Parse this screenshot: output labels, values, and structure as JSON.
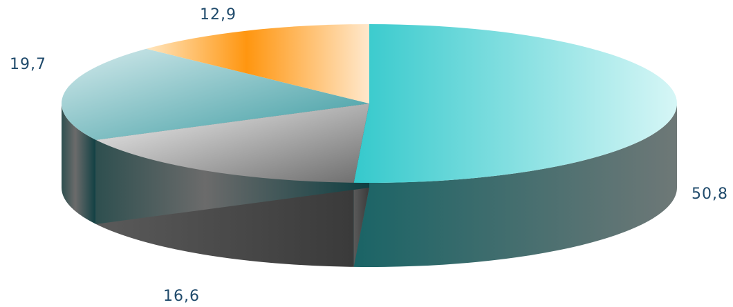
{
  "chart_data": {
    "type": "pie",
    "style": "3d",
    "slices": [
      {
        "label": "50,8",
        "value": 50.8,
        "color": "#3ecfcf"
      },
      {
        "label": "16,6",
        "value": 16.6,
        "color": "#a9a9a9"
      },
      {
        "label": "19,7",
        "value": 19.7,
        "color": "#8fc4c8"
      },
      {
        "label": "12,9",
        "value": 12.9,
        "color": "#ff9f2a"
      }
    ],
    "label_color": "#1f4a6b"
  }
}
